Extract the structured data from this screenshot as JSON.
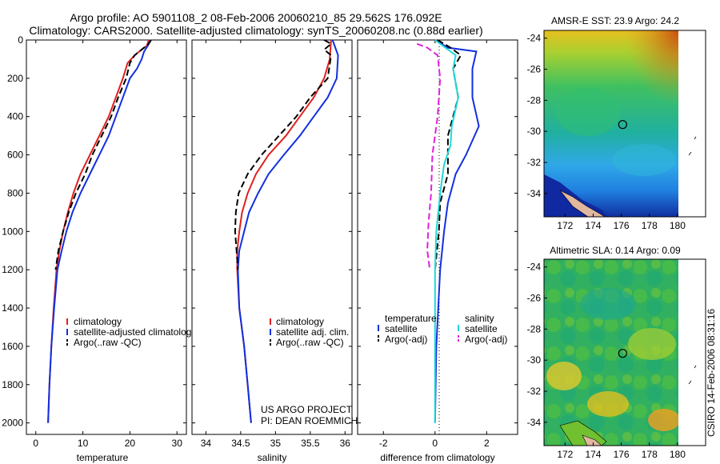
{
  "header": {
    "line1": "Argo profile: AO 5901108_2 08-Feb-2006 20060210_85 29.562S 176.092E",
    "line2": "Climatology: CARS2000. Satellite-adjusted climatology: synTS_20060208.nc (0.88d earlier)"
  },
  "credits": {
    "project": "US ARGO PROJECT",
    "pi": "PI: DEAN ROEMMICH",
    "stamp": "CSIRO 14-Feb-2006 08:31:16"
  },
  "colors": {
    "red": "#e02020",
    "blue": "#1030e0",
    "black": "#000000",
    "cyan": "#20d8d8",
    "magenta": "#e020e0"
  },
  "chart_data": [
    {
      "type": "line",
      "xlabel": "temperature",
      "ylabel": "",
      "xlim": [
        -2,
        32
      ],
      "ylim": [
        2060,
        0
      ],
      "xticks": [
        0,
        10,
        20,
        30
      ],
      "yticks": [
        0,
        200,
        400,
        600,
        800,
        1000,
        1200,
        1400,
        1600,
        1800,
        2000
      ],
      "legend": [
        "climatology",
        "satellite-adjusted climatology",
        "Argo(..raw -QC)"
      ],
      "series": [
        {
          "name": "climatology",
          "color": "#e02020",
          "dash": "",
          "points": [
            [
              24,
              0
            ],
            [
              23.6,
              30
            ],
            [
              22.5,
              50
            ],
            [
              21,
              80
            ],
            [
              19.5,
              120
            ],
            [
              18.5,
              200
            ],
            [
              17,
              300
            ],
            [
              15.5,
              400
            ],
            [
              13.5,
              500
            ],
            [
              11.5,
              600
            ],
            [
              9.5,
              700
            ],
            [
              8,
              800
            ],
            [
              6.8,
              900
            ],
            [
              5.8,
              1000
            ],
            [
              5,
              1100
            ],
            [
              4.4,
              1200
            ],
            [
              3.8,
              1400
            ],
            [
              3.3,
              1600
            ],
            [
              2.9,
              1800
            ],
            [
              2.6,
              2000
            ]
          ]
        },
        {
          "name": "satellite-adjusted climatology",
          "color": "#1030e0",
          "dash": "",
          "points": [
            [
              24.3,
              0
            ],
            [
              23.8,
              30
            ],
            [
              23,
              60
            ],
            [
              22.5,
              100
            ],
            [
              21.5,
              150
            ],
            [
              20,
              200
            ],
            [
              18.5,
              300
            ],
            [
              17,
              400
            ],
            [
              15.5,
              500
            ],
            [
              13.5,
              600
            ],
            [
              11.5,
              700
            ],
            [
              9.5,
              800
            ],
            [
              7.8,
              900
            ],
            [
              6.5,
              1000
            ],
            [
              5.5,
              1100
            ],
            [
              4.6,
              1200
            ],
            [
              3.9,
              1400
            ],
            [
              3.3,
              1600
            ],
            [
              2.9,
              1800
            ],
            [
              2.6,
              2000
            ]
          ]
        },
        {
          "name": "Argo(..raw -QC)",
          "color": "#000000",
          "dash": "8,4",
          "points": [
            [
              24.5,
              0
            ],
            [
              24,
              20
            ],
            [
              22.5,
              50
            ],
            [
              21,
              80
            ],
            [
              20,
              120
            ],
            [
              19.2,
              200
            ],
            [
              17.5,
              300
            ],
            [
              16,
              400
            ],
            [
              14,
              500
            ],
            [
              12,
              600
            ],
            [
              10.5,
              700
            ],
            [
              8.5,
              800
            ],
            [
              7,
              900
            ],
            [
              5.8,
              1000
            ],
            [
              4.8,
              1100
            ],
            [
              4.2,
              1200
            ]
          ]
        }
      ]
    },
    {
      "type": "line",
      "xlabel": "salinity",
      "ylabel": "",
      "xlim": [
        33.8,
        36.1
      ],
      "ylim": [
        2060,
        0
      ],
      "xticks": [
        34,
        34.5,
        35,
        35.5,
        36
      ],
      "legend": [
        "climatology",
        "satellite adj. clim.",
        "Argo(..raw -QC)"
      ],
      "series": [
        {
          "name": "climatology",
          "color": "#e02020",
          "dash": "",
          "points": [
            [
              35.8,
              0
            ],
            [
              35.78,
              100
            ],
            [
              35.7,
              200
            ],
            [
              35.55,
              300
            ],
            [
              35.35,
              400
            ],
            [
              35.15,
              500
            ],
            [
              34.9,
              600
            ],
            [
              34.72,
              700
            ],
            [
              34.6,
              800
            ],
            [
              34.52,
              900
            ],
            [
              34.48,
              1000
            ],
            [
              34.45,
              1100
            ],
            [
              34.45,
              1200
            ],
            [
              34.48,
              1400
            ],
            [
              34.55,
              1600
            ],
            [
              34.6,
              1800
            ],
            [
              34.65,
              2000
            ]
          ]
        },
        {
          "name": "satellite adj. clim.",
          "color": "#1030e0",
          "dash": "",
          "points": [
            [
              35.82,
              0
            ],
            [
              35.9,
              80
            ],
            [
              35.88,
              200
            ],
            [
              35.75,
              300
            ],
            [
              35.55,
              400
            ],
            [
              35.35,
              500
            ],
            [
              35.12,
              600
            ],
            [
              34.9,
              700
            ],
            [
              34.75,
              800
            ],
            [
              34.62,
              900
            ],
            [
              34.55,
              1000
            ],
            [
              34.48,
              1100
            ],
            [
              34.46,
              1200
            ],
            [
              34.48,
              1400
            ],
            [
              34.55,
              1600
            ],
            [
              34.6,
              1800
            ],
            [
              34.65,
              2000
            ]
          ]
        },
        {
          "name": "Argo(..raw -QC)",
          "color": "#000000",
          "dash": "8,4",
          "points": [
            [
              35.7,
              0
            ],
            [
              35.8,
              20
            ],
            [
              35.7,
              50
            ],
            [
              35.8,
              80
            ],
            [
              35.75,
              200
            ],
            [
              35.5,
              300
            ],
            [
              35.3,
              400
            ],
            [
              35.05,
              500
            ],
            [
              34.8,
              600
            ],
            [
              34.6,
              700
            ],
            [
              34.47,
              800
            ],
            [
              34.43,
              900
            ],
            [
              34.42,
              1000
            ],
            [
              34.44,
              1100
            ],
            [
              34.46,
              1200
            ]
          ]
        }
      ]
    },
    {
      "type": "line",
      "xlabel": "difference from climatology",
      "ylabel": "",
      "xlim": [
        -3,
        3.2
      ],
      "ylim": [
        2060,
        0
      ],
      "xticks": [
        -2,
        0,
        2
      ],
      "legend": [
        "temperature",
        "satellite",
        "Argo(-adj)",
        "salinity",
        "satellite",
        "Argo(-adj)"
      ],
      "series": [
        {
          "name": "temperature satellite",
          "color": "#1030e0",
          "dash": "",
          "points": [
            [
              0,
              0
            ],
            [
              0.5,
              40
            ],
            [
              1.6,
              60
            ],
            [
              1.45,
              150
            ],
            [
              1.45,
              300
            ],
            [
              1.7,
              450
            ],
            [
              1.2,
              600
            ],
            [
              0.8,
              700
            ],
            [
              0.5,
              850
            ],
            [
              0.35,
              1000
            ],
            [
              0.2,
              1200
            ],
            [
              0.05,
              1600
            ],
            [
              0,
              2000
            ]
          ]
        },
        {
          "name": "temperature Argo(-adj)",
          "color": "#000000",
          "dash": "8,4",
          "points": [
            [
              0.1,
              0
            ],
            [
              0.6,
              40
            ],
            [
              1.0,
              80
            ],
            [
              0.7,
              150
            ],
            [
              0.9,
              300
            ],
            [
              0.5,
              500
            ],
            [
              0.5,
              700
            ],
            [
              0.2,
              850
            ],
            [
              0.15,
              1000
            ],
            [
              0,
              1200
            ]
          ]
        },
        {
          "name": "salinity satellite",
          "color": "#20d8d8",
          "dash": "",
          "points": [
            [
              0,
              0
            ],
            [
              0.4,
              40
            ],
            [
              0.8,
              80
            ],
            [
              0.7,
              150
            ],
            [
              0.9,
              300
            ],
            [
              0.65,
              450
            ],
            [
              0.6,
              550
            ],
            [
              0.35,
              650
            ],
            [
              0.2,
              800
            ],
            [
              0.05,
              1000
            ],
            [
              0,
              1200
            ],
            [
              0,
              2000
            ]
          ]
        },
        {
          "name": "salinity Argo(-adj)",
          "color": "#e020e0",
          "dash": "8,4",
          "points": [
            [
              -0.7,
              20
            ],
            [
              -0.3,
              40
            ],
            [
              0.1,
              80
            ],
            [
              0.2,
              200
            ],
            [
              0.1,
              400
            ],
            [
              -0.1,
              600
            ],
            [
              -0.15,
              800
            ],
            [
              -0.25,
              950
            ],
            [
              -0.3,
              1100
            ],
            [
              -0.2,
              1200
            ]
          ]
        }
      ]
    },
    {
      "type": "heatmap",
      "title": "AMSR-E SST: 23.9 Argo: 24.2",
      "xlim": [
        170.5,
        182
      ],
      "ylim": [
        -35.5,
        -23.5
      ],
      "xticks": [
        172,
        174,
        176,
        178,
        180
      ],
      "yticks": [
        -24,
        -26,
        -28,
        -30,
        -32,
        -34
      ],
      "marker": {
        "lon": 176.1,
        "lat": -29.56
      }
    },
    {
      "type": "heatmap",
      "title": "Altimetric SLA: 0.14 Argo: 0.09",
      "xlim": [
        170.5,
        182
      ],
      "ylim": [
        -35.5,
        -23.5
      ],
      "xticks": [
        172,
        174,
        176,
        178,
        180
      ],
      "yticks": [
        -24,
        -26,
        -28,
        -30,
        -32,
        -34
      ],
      "marker": {
        "lon": 176.1,
        "lat": -29.56
      }
    }
  ]
}
